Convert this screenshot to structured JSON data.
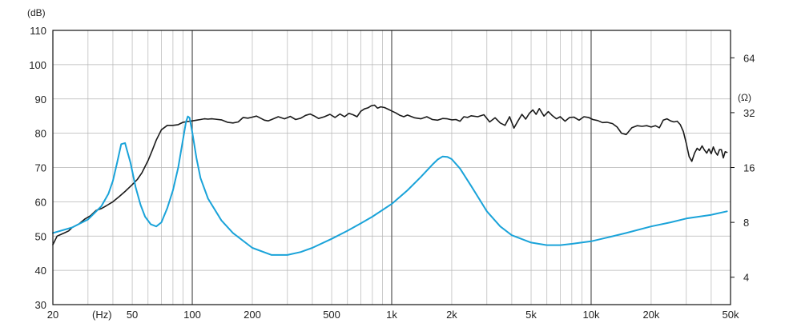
{
  "chart_data": {
    "type": "line",
    "title": "",
    "xscale": "log",
    "xlim": [
      20,
      50000
    ],
    "ylim": [
      30,
      110
    ],
    "ylim_right_ohm": [
      2.83,
      90.5
    ],
    "y_unit_label": "(dB)",
    "x_unit_label": "(Hz)",
    "y2_unit_label": "(Ω)",
    "grid": true,
    "colors": {
      "spl": "#1a1a1a",
      "impedance": "#1aa3d9",
      "grid_minor": "#b5b5b5",
      "grid_major": "#555555",
      "axis": "#111111"
    },
    "x_ticks": [
      {
        "v": 20,
        "label": "20"
      },
      {
        "v": 50,
        "label": "50"
      },
      {
        "v": 100,
        "label": "100"
      },
      {
        "v": 200,
        "label": "200"
      },
      {
        "v": 500,
        "label": "500"
      },
      {
        "v": 1000,
        "label": "1k"
      },
      {
        "v": 2000,
        "label": "2k"
      },
      {
        "v": 5000,
        "label": "5k"
      },
      {
        "v": 10000,
        "label": "10k"
      },
      {
        "v": 20000,
        "label": "20k"
      },
      {
        "v": 50000,
        "label": "50k"
      }
    ],
    "y_ticks": [
      "30",
      "40",
      "50",
      "60",
      "70",
      "80",
      "90",
      "100",
      "110"
    ],
    "y2_ticks": [
      {
        "v": 4,
        "label": "4"
      },
      {
        "v": 8,
        "label": "8"
      },
      {
        "v": 16,
        "label": "16"
      },
      {
        "v": 32,
        "label": "32"
      },
      {
        "v": 64,
        "label": "64"
      }
    ],
    "series": [
      {
        "key": "spl",
        "axis": "left",
        "points": [
          [
            20,
            47.5
          ],
          [
            21,
            50
          ],
          [
            22,
            50.5
          ],
          [
            23,
            51
          ],
          [
            24,
            51.5
          ],
          [
            25,
            52.5
          ],
          [
            27,
            53.5
          ],
          [
            29,
            55
          ],
          [
            31,
            56
          ],
          [
            33,
            57.5
          ],
          [
            35,
            58
          ],
          [
            37,
            58.8
          ],
          [
            40,
            60
          ],
          [
            43,
            61.5
          ],
          [
            46,
            63
          ],
          [
            50,
            65
          ],
          [
            53,
            66.5
          ],
          [
            56,
            68.5
          ],
          [
            60,
            72
          ],
          [
            63,
            75
          ],
          [
            66,
            78
          ],
          [
            70,
            81
          ],
          [
            75,
            82.3
          ],
          [
            80,
            82.3
          ],
          [
            85,
            82.5
          ],
          [
            90,
            83.2
          ],
          [
            95,
            83.4
          ],
          [
            100,
            83.6
          ],
          [
            105,
            83.8
          ],
          [
            110,
            84
          ],
          [
            115,
            84.2
          ],
          [
            120,
            84.1
          ],
          [
            125,
            84.2
          ],
          [
            130,
            84.1
          ],
          [
            140,
            83.9
          ],
          [
            150,
            83.2
          ],
          [
            160,
            83
          ],
          [
            170,
            83.3
          ],
          [
            180,
            84.6
          ],
          [
            190,
            84.4
          ],
          [
            200,
            84.7
          ],
          [
            210,
            85
          ],
          [
            220,
            84.4
          ],
          [
            230,
            83.8
          ],
          [
            240,
            83.6
          ],
          [
            250,
            84
          ],
          [
            270,
            84.8
          ],
          [
            290,
            84.2
          ],
          [
            310,
            84.9
          ],
          [
            330,
            84
          ],
          [
            350,
            84.4
          ],
          [
            370,
            85.2
          ],
          [
            390,
            85.6
          ],
          [
            410,
            85
          ],
          [
            430,
            84.3
          ],
          [
            460,
            84.8
          ],
          [
            490,
            85.5
          ],
          [
            520,
            84.6
          ],
          [
            550,
            85.6
          ],
          [
            580,
            84.8
          ],
          [
            610,
            85.8
          ],
          [
            640,
            85.4
          ],
          [
            670,
            84.8
          ],
          [
            700,
            86.4
          ],
          [
            730,
            87.1
          ],
          [
            760,
            87.4
          ],
          [
            790,
            88
          ],
          [
            820,
            88.2
          ],
          [
            850,
            87.3
          ],
          [
            880,
            87.7
          ],
          [
            920,
            87.5
          ],
          [
            960,
            87
          ],
          [
            1000,
            86.5
          ],
          [
            1050,
            85.9
          ],
          [
            1100,
            85.2
          ],
          [
            1150,
            84.8
          ],
          [
            1200,
            85.3
          ],
          [
            1250,
            84.9
          ],
          [
            1300,
            84.5
          ],
          [
            1400,
            84.2
          ],
          [
            1500,
            84.8
          ],
          [
            1600,
            84
          ],
          [
            1700,
            83.8
          ],
          [
            1800,
            84.3
          ],
          [
            1900,
            84.2
          ],
          [
            2000,
            83.9
          ],
          [
            2100,
            84
          ],
          [
            2200,
            83.5
          ],
          [
            2300,
            84.8
          ],
          [
            2400,
            84.6
          ],
          [
            2500,
            85.1
          ],
          [
            2700,
            84.8
          ],
          [
            2900,
            85.4
          ],
          [
            3100,
            83.3
          ],
          [
            3300,
            84.5
          ],
          [
            3500,
            83
          ],
          [
            3700,
            82.3
          ],
          [
            3900,
            84.8
          ],
          [
            4100,
            81.5
          ],
          [
            4300,
            83.6
          ],
          [
            4500,
            85.5
          ],
          [
            4700,
            84.1
          ],
          [
            4900,
            85.8
          ],
          [
            5100,
            86.8
          ],
          [
            5300,
            85.5
          ],
          [
            5500,
            87.2
          ],
          [
            5800,
            85
          ],
          [
            6100,
            86.3
          ],
          [
            6400,
            85.1
          ],
          [
            6700,
            84.2
          ],
          [
            7000,
            84.8
          ],
          [
            7400,
            83.5
          ],
          [
            7800,
            84.6
          ],
          [
            8200,
            84.7
          ],
          [
            8700,
            83.8
          ],
          [
            9200,
            84.8
          ],
          [
            9700,
            84.6
          ],
          [
            10200,
            84
          ],
          [
            10800,
            83.7
          ],
          [
            11400,
            83.1
          ],
          [
            12000,
            83.2
          ],
          [
            12800,
            82.8
          ],
          [
            13500,
            81.8
          ],
          [
            14200,
            80
          ],
          [
            15000,
            79.6
          ],
          [
            16000,
            81.6
          ],
          [
            17000,
            82.2
          ],
          [
            18000,
            82
          ],
          [
            19000,
            82.2
          ],
          [
            20000,
            81.8
          ],
          [
            21000,
            82.2
          ],
          [
            22000,
            81.6
          ],
          [
            23000,
            83.8
          ],
          [
            24000,
            84.2
          ],
          [
            25000,
            83.6
          ],
          [
            26000,
            83.3
          ],
          [
            27000,
            83.5
          ],
          [
            28000,
            82.5
          ],
          [
            29000,
            80.5
          ],
          [
            30000,
            77
          ],
          [
            31000,
            73.2
          ],
          [
            32000,
            71.8
          ],
          [
            33000,
            74.2
          ],
          [
            34000,
            75.6
          ],
          [
            35000,
            75
          ],
          [
            36000,
            76.3
          ],
          [
            37000,
            75.1
          ],
          [
            38000,
            74.2
          ],
          [
            39000,
            75.4
          ],
          [
            40000,
            74
          ],
          [
            41000,
            76
          ],
          [
            42000,
            74.5
          ],
          [
            43000,
            73.6
          ],
          [
            44000,
            75.2
          ],
          [
            45000,
            75.2
          ],
          [
            46000,
            72.8
          ],
          [
            47000,
            74.6
          ],
          [
            48000,
            74.4
          ]
        ]
      },
      {
        "key": "impedance",
        "axis": "right",
        "points": [
          [
            20,
            7.0
          ],
          [
            25,
            7.5
          ],
          [
            30,
            8.3
          ],
          [
            35,
            9.8
          ],
          [
            38,
            11.5
          ],
          [
            40,
            13.5
          ],
          [
            42,
            17
          ],
          [
            44,
            21.5
          ],
          [
            46,
            21.8
          ],
          [
            47,
            20
          ],
          [
            49,
            17
          ],
          [
            52,
            12.5
          ],
          [
            55,
            10
          ],
          [
            58,
            8.6
          ],
          [
            62,
            7.8
          ],
          [
            66,
            7.6
          ],
          [
            70,
            8.0
          ],
          [
            75,
            9.6
          ],
          [
            80,
            12
          ],
          [
            85,
            16
          ],
          [
            90,
            23
          ],
          [
            93,
            28.5
          ],
          [
            95,
            30.5
          ],
          [
            97,
            30
          ],
          [
            100,
            25
          ],
          [
            105,
            18
          ],
          [
            110,
            14
          ],
          [
            120,
            10.8
          ],
          [
            140,
            8.2
          ],
          [
            160,
            7.0
          ],
          [
            200,
            5.8
          ],
          [
            250,
            5.3
          ],
          [
            300,
            5.3
          ],
          [
            350,
            5.5
          ],
          [
            400,
            5.8
          ],
          [
            500,
            6.5
          ],
          [
            600,
            7.2
          ],
          [
            700,
            7.9
          ],
          [
            800,
            8.6
          ],
          [
            1000,
            10.1
          ],
          [
            1200,
            12
          ],
          [
            1400,
            14.2
          ],
          [
            1600,
            16.6
          ],
          [
            1700,
            17.7
          ],
          [
            1800,
            18.4
          ],
          [
            1900,
            18.3
          ],
          [
            2000,
            17.8
          ],
          [
            2200,
            15.8
          ],
          [
            2500,
            12.7
          ],
          [
            3000,
            9.2
          ],
          [
            3500,
            7.6
          ],
          [
            4000,
            6.8
          ],
          [
            5000,
            6.2
          ],
          [
            6000,
            6.0
          ],
          [
            7000,
            6.0
          ],
          [
            8000,
            6.1
          ],
          [
            10000,
            6.3
          ],
          [
            12000,
            6.6
          ],
          [
            15000,
            7.0
          ],
          [
            20000,
            7.6
          ],
          [
            25000,
            8.0
          ],
          [
            30000,
            8.4
          ],
          [
            40000,
            8.8
          ],
          [
            48000,
            9.2
          ]
        ]
      }
    ]
  }
}
